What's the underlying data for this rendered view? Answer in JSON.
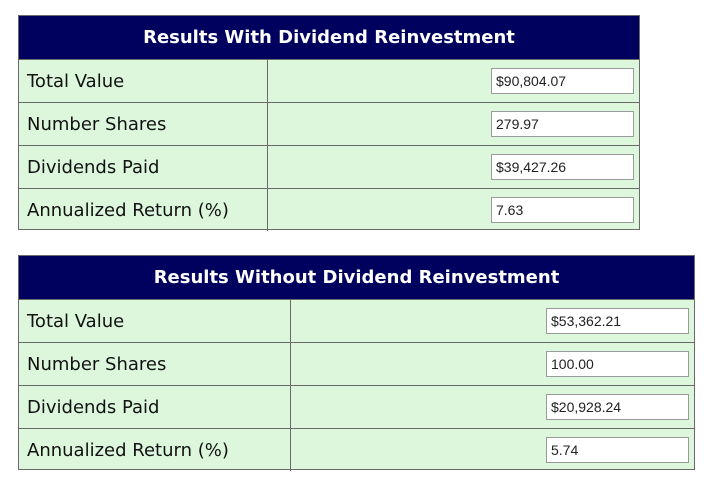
{
  "tables": [
    {
      "title": "Results With Dividend Reinvestment",
      "rows": [
        [
          "Total Value",
          "$90,804.07"
        ],
        [
          "Number Shares",
          "279.97"
        ],
        [
          "Dividends Paid",
          "$39,427.26"
        ],
        [
          "Annualized Return (%)",
          "7.63"
        ]
      ]
    },
    {
      "title": "Results Without Dividend Reinvestment",
      "rows": [
        [
          "Total Value",
          "$53,362.21"
        ],
        [
          "Number Shares",
          "100.00"
        ],
        [
          "Dividends Paid",
          "$20,928.24"
        ],
        [
          "Annualized Return (%)",
          "5.74"
        ]
      ]
    }
  ]
}
